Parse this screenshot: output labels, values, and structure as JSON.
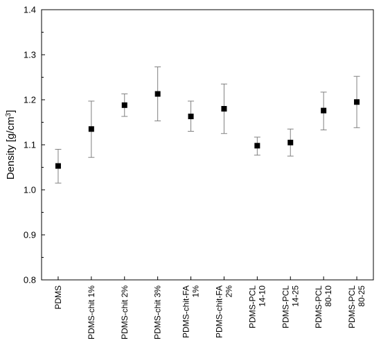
{
  "chart_data": {
    "type": "scatter",
    "title": "",
    "xlabel": "",
    "ylabel": {
      "main": "Density [g/cm",
      "sup": "3",
      "tail": "]"
    },
    "ylim": [
      0.8,
      1.4
    ],
    "yticks": [
      "0.8",
      "0.9",
      "1.0",
      "1.1",
      "1.2",
      "1.3",
      "1.4"
    ],
    "grid": false,
    "legend": "none",
    "marker": "square",
    "marker_color": "#000000",
    "errorbar_color": "#808080",
    "categories": [
      {
        "lines": [
          "PDMS"
        ]
      },
      {
        "lines": [
          "PDMS-chit 1%"
        ]
      },
      {
        "lines": [
          "PDMS-chit 2%"
        ]
      },
      {
        "lines": [
          "PDMS-chit 3%"
        ]
      },
      {
        "lines": [
          "PDMS-chit-FA",
          "1%"
        ]
      },
      {
        "lines": [
          "PDMS-chit-FA",
          "2%"
        ]
      },
      {
        "lines": [
          "PDMS-PCL",
          "14-10"
        ]
      },
      {
        "lines": [
          "PDMS-PCL",
          "14-25"
        ]
      },
      {
        "lines": [
          "PDMS-PCL",
          "80-10"
        ]
      },
      {
        "lines": [
          "PDMS-PCL",
          "80-25"
        ]
      }
    ],
    "values": [
      1.053,
      1.135,
      1.188,
      1.213,
      1.163,
      1.18,
      1.098,
      1.105,
      1.176,
      1.195
    ],
    "err_low": [
      1.015,
      1.072,
      1.163,
      1.153,
      1.13,
      1.125,
      1.077,
      1.075,
      1.133,
      1.138
    ],
    "err_high": [
      1.09,
      1.197,
      1.213,
      1.273,
      1.197,
      1.235,
      1.117,
      1.135,
      1.217,
      1.252
    ]
  }
}
